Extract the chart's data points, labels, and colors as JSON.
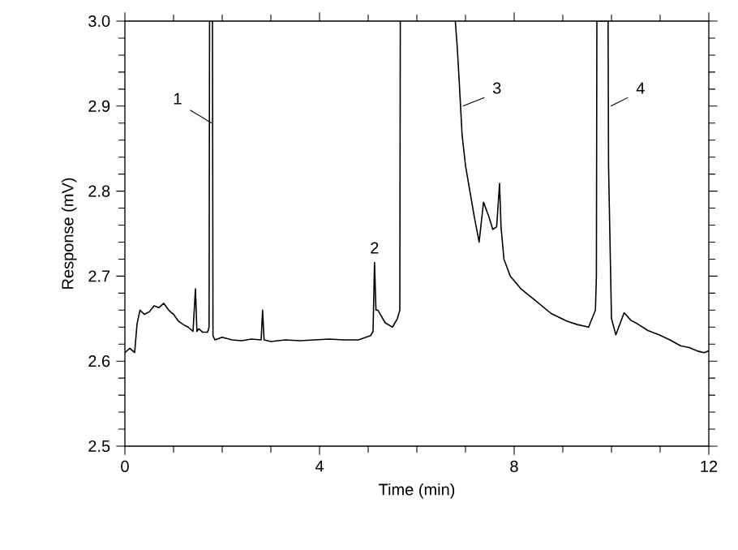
{
  "chart_data": {
    "type": "line",
    "xlabel": "Time (min)",
    "ylabel": "Response (mV)",
    "color": "#000000",
    "xlim": [
      0,
      12
    ],
    "ylim": [
      2.5,
      3.0
    ],
    "xticks": [
      0,
      4,
      8,
      12
    ],
    "yticks": [
      2.5,
      2.6,
      2.7,
      2.8,
      2.9,
      {
        "value": 3.0,
        "label": "3.0"
      }
    ],
    "x": [
      0,
      0.1,
      0.2,
      0.25,
      0.31,
      0.4,
      0.5,
      0.6,
      0.7,
      0.8,
      0.9,
      1.0,
      1.1,
      1.2,
      1.3,
      1.4,
      1.45,
      1.48,
      1.52,
      1.6,
      1.7,
      1.73,
      1.74,
      1.8,
      1.81,
      1.85,
      2.0,
      2.2,
      2.4,
      2.6,
      2.8,
      2.83,
      2.86,
      3.0,
      3.3,
      3.6,
      3.9,
      4.2,
      4.5,
      4.8,
      5.05,
      5.1,
      5.13,
      5.16,
      5.2,
      5.35,
      5.5,
      5.6,
      5.65,
      5.66,
      6.2,
      6.79,
      6.83,
      6.87,
      6.93,
      7.0,
      7.09,
      7.18,
      7.28,
      7.37,
      7.48,
      7.56,
      7.64,
      7.7,
      7.73,
      7.79,
      7.92,
      8.14,
      8.42,
      8.76,
      9.09,
      9.3,
      9.53,
      9.67,
      9.69,
      9.7,
      9.93,
      9.94,
      10.0,
      10.09,
      10.26,
      10.4,
      10.53,
      10.75,
      10.98,
      11.2,
      11.42,
      11.6,
      11.76,
      11.9,
      12.0
    ],
    "values": [
      2.61,
      2.615,
      2.61,
      2.644,
      2.66,
      2.655,
      2.658,
      2.665,
      2.663,
      2.668,
      2.66,
      2.655,
      2.647,
      2.643,
      2.64,
      2.635,
      2.685,
      2.635,
      2.638,
      2.634,
      2.634,
      2.64,
      3.0,
      3.0,
      2.63,
      2.625,
      2.628,
      2.625,
      2.624,
      2.626,
      2.625,
      2.66,
      2.625,
      2.623,
      2.625,
      2.624,
      2.625,
      2.626,
      2.625,
      2.625,
      2.63,
      2.635,
      2.716,
      2.66,
      2.66,
      2.645,
      2.64,
      2.65,
      2.66,
      3.0,
      null,
      3.0,
      2.97,
      2.93,
      2.866,
      2.83,
      2.8,
      2.77,
      2.74,
      2.787,
      2.77,
      2.755,
      2.758,
      2.809,
      2.758,
      2.72,
      2.7,
      2.685,
      2.672,
      2.656,
      2.647,
      2.643,
      2.64,
      2.66,
      2.7,
      3.0,
      3.0,
      2.83,
      2.65,
      2.631,
      2.657,
      2.648,
      2.644,
      2.636,
      2.631,
      2.625,
      2.618,
      2.616,
      2.612,
      2.61,
      2.612
    ],
    "annotations": [
      {
        "text": "1",
        "x": 1.74,
        "y": 2.88
      },
      {
        "text": "2",
        "x": 5.13,
        "y": 2.716
      },
      {
        "text": "3",
        "x": 6.9,
        "y": 2.9
      },
      {
        "text": "4",
        "x": 9.94,
        "y": 2.9
      }
    ]
  }
}
